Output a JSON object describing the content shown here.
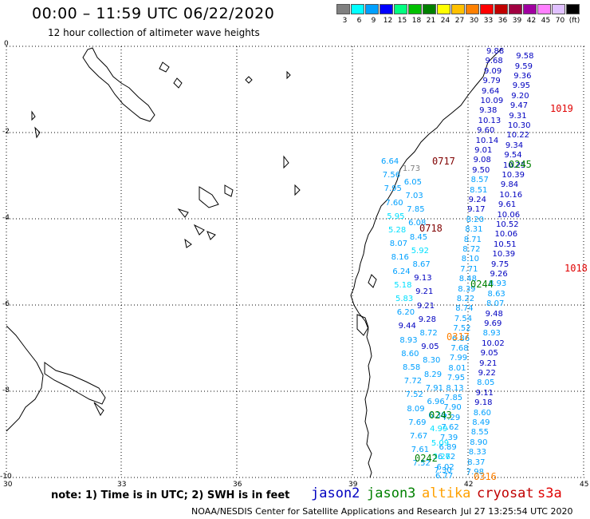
{
  "header": {
    "title": "00:00 – 11:59 UTC 06/22/2020",
    "subtitle": "12 hour collection of altimeter wave heights"
  },
  "scale": [
    {
      "label": "3",
      "color": "#808080"
    },
    {
      "label": "6",
      "color": "#00ffff"
    },
    {
      "label": "9",
      "color": "#00a0ff"
    },
    {
      "label": "12",
      "color": "#0000ff"
    },
    {
      "label": "15",
      "color": "#00ff80"
    },
    {
      "label": "18",
      "color": "#00c000"
    },
    {
      "label": "21",
      "color": "#008000"
    },
    {
      "label": "24",
      "color": "#ffff00"
    },
    {
      "label": "27",
      "color": "#ffc000"
    },
    {
      "label": "30",
      "color": "#ff8000"
    },
    {
      "label": "33",
      "color": "#ff0000"
    },
    {
      "label": "36",
      "color": "#c00000"
    },
    {
      "label": "39",
      "color": "#a00040"
    },
    {
      "label": "42",
      "color": "#a000a0"
    },
    {
      "label": "45",
      "color": "#ff80ff"
    },
    {
      "label": "70",
      "color": "#e0c0ff"
    },
    {
      "label": "(ft)",
      "color": "#000000"
    }
  ],
  "axes": {
    "x_ticks": [
      "30",
      "33",
      "36",
      "39",
      "42",
      "45"
    ],
    "y_ticks": [
      "0",
      "-2",
      "-4",
      "-6",
      "-8",
      "-10"
    ]
  },
  "notes": {
    "text": "note:  1) Time is in UTC; 2) SWH is in feet"
  },
  "legend": [
    {
      "name": "jason2",
      "color": "#0000c0"
    },
    {
      "name": "jason3",
      "color": "#008000"
    },
    {
      "name": "altika",
      "color": "#ffa000"
    },
    {
      "name": "cryosat",
      "color": "#c00000"
    },
    {
      "name": "s3a",
      "color": "#e00000"
    }
  ],
  "footer": {
    "left": "NOAA/NESDIS Center for Satellite Applications and Research",
    "right": "Jul 27 13:25:54 UTC 2020"
  },
  "track_labels": [
    {
      "text": "1019",
      "color": "#e00000"
    },
    {
      "text": "0717",
      "color": "#800000"
    },
    {
      "text": "0245",
      "color": "#008000"
    },
    {
      "text": "0718",
      "color": "#800000"
    },
    {
      "text": "1018",
      "color": "#e00000"
    },
    {
      "text": "0244",
      "color": "#008000"
    },
    {
      "text": "0317",
      "color": "#ff8000"
    },
    {
      "text": "0243",
      "color": "#008000"
    },
    {
      "text": "0242",
      "color": "#008000"
    },
    {
      "text": "0316",
      "color": "#ff8000"
    }
  ],
  "wave_heights": {
    "track_a": [
      "9.88",
      "9.58",
      "9.68",
      "9.59",
      "9.09",
      "9.36",
      "9.79",
      "9.95",
      "9.64",
      "9.20",
      "10.09",
      "9.47",
      "9.38",
      "9.31",
      "10.13",
      "10.30",
      "9.60",
      "10.22",
      "10.14",
      "9.34",
      "9.01",
      "9.54",
      "9.08",
      "10.25",
      "9.50",
      "10.39",
      "8.57",
      "9.84",
      "8.51",
      "10.16",
      "9.24",
      "9.61",
      "9.17",
      "10.06",
      "8.20",
      "10.52",
      "8.31",
      "10.06",
      "8.71",
      "10.51",
      "8.72",
      "10.39",
      "8.10",
      "9.75",
      "7.71",
      "9.26",
      "8.48",
      "8.93",
      "8.39",
      "8.63",
      "8.22",
      "8.07",
      "8.74",
      "9.48",
      "7.54",
      "9.69",
      "7.52",
      "8.93",
      "6.86",
      "10.02",
      "7.68",
      "9.05",
      "7.99",
      "9.21",
      "8.01",
      "9.22",
      "7.95",
      "8.05",
      "8.13",
      "9.11",
      "7.85",
      "9.18",
      "7.90",
      "8.60",
      "7.29",
      "8.49",
      "7.62",
      "8.55",
      "7.39",
      "8.90",
      "6.89",
      "8.33",
      "6.72",
      "8.37",
      "6.02",
      "7.98",
      "6.77"
    ],
    "track_b": [
      "6.64",
      "1.73",
      "7.56",
      "6.05",
      "7.95",
      "7.03",
      "7.60",
      "7.85",
      "5.95",
      "6.08",
      "5.28",
      "8.45",
      "8.07",
      "5.92",
      "8.16",
      "8.67",
      "6.24",
      "9.13",
      "5.18",
      "9.21",
      "5.83",
      "9.21",
      "6.20",
      "9.28",
      "9.44",
      "8.72",
      "8.93",
      "9.05",
      "8.60",
      "8.30",
      "8.58",
      "8.29",
      "7.72",
      "7.91",
      "7.52",
      "6.96",
      "8.09",
      "6.30",
      "7.69",
      "4.99",
      "7.67",
      "5.09",
      "7.61",
      "3.26",
      "7.52",
      "7.30"
    ]
  }
}
